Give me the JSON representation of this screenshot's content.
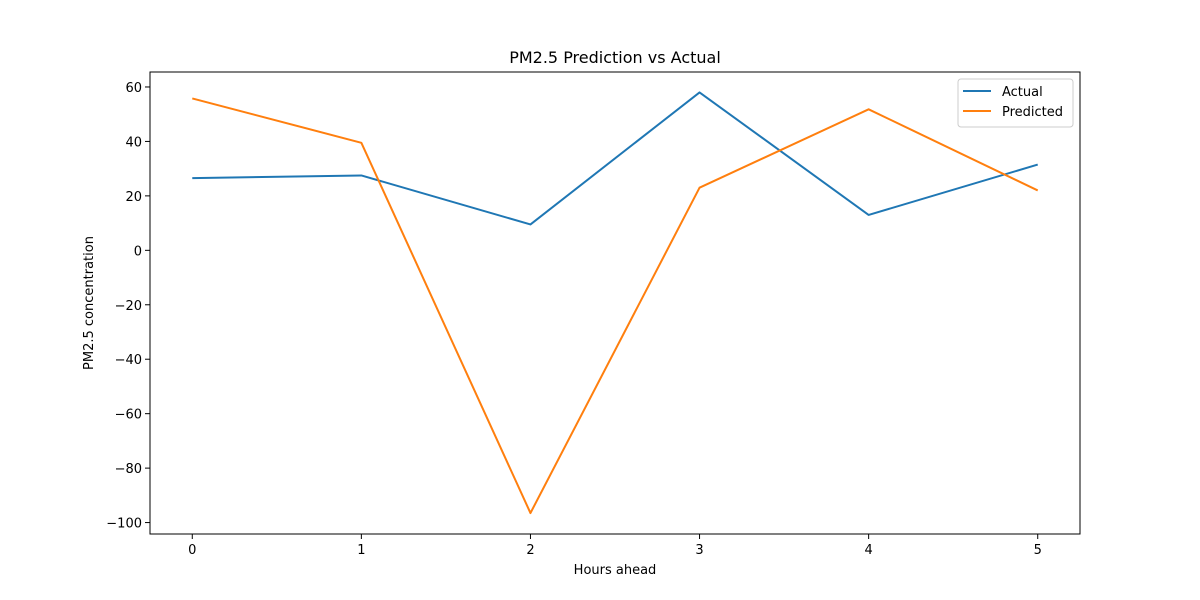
{
  "chart_data": {
    "type": "line",
    "title": "PM2.5 Prediction vs Actual",
    "xlabel": "Hours ahead",
    "ylabel": "PM2.5 concentration",
    "x": [
      0,
      1,
      2,
      3,
      4,
      5
    ],
    "xlim": [
      -0.25,
      5.25
    ],
    "ylim": [
      -104.2,
      65.5
    ],
    "xticks": [
      0,
      1,
      2,
      3,
      4,
      5
    ],
    "yticks": [
      60,
      40,
      20,
      0,
      -20,
      -40,
      -60,
      -80,
      -100
    ],
    "ytick_labels": [
      "60",
      "40",
      "20",
      "0",
      "−20",
      "−40",
      "−60",
      "−80",
      "−100"
    ],
    "grid": false,
    "legend_position": "top-right",
    "series": [
      {
        "name": "Actual",
        "color": "#1f77b4",
        "values": [
          26.5,
          27.5,
          9.5,
          58.0,
          13.0,
          31.5
        ]
      },
      {
        "name": "Predicted",
        "color": "#ff7f0e",
        "values": [
          55.8,
          39.5,
          -96.5,
          23.0,
          51.8,
          22.0
        ]
      }
    ]
  }
}
